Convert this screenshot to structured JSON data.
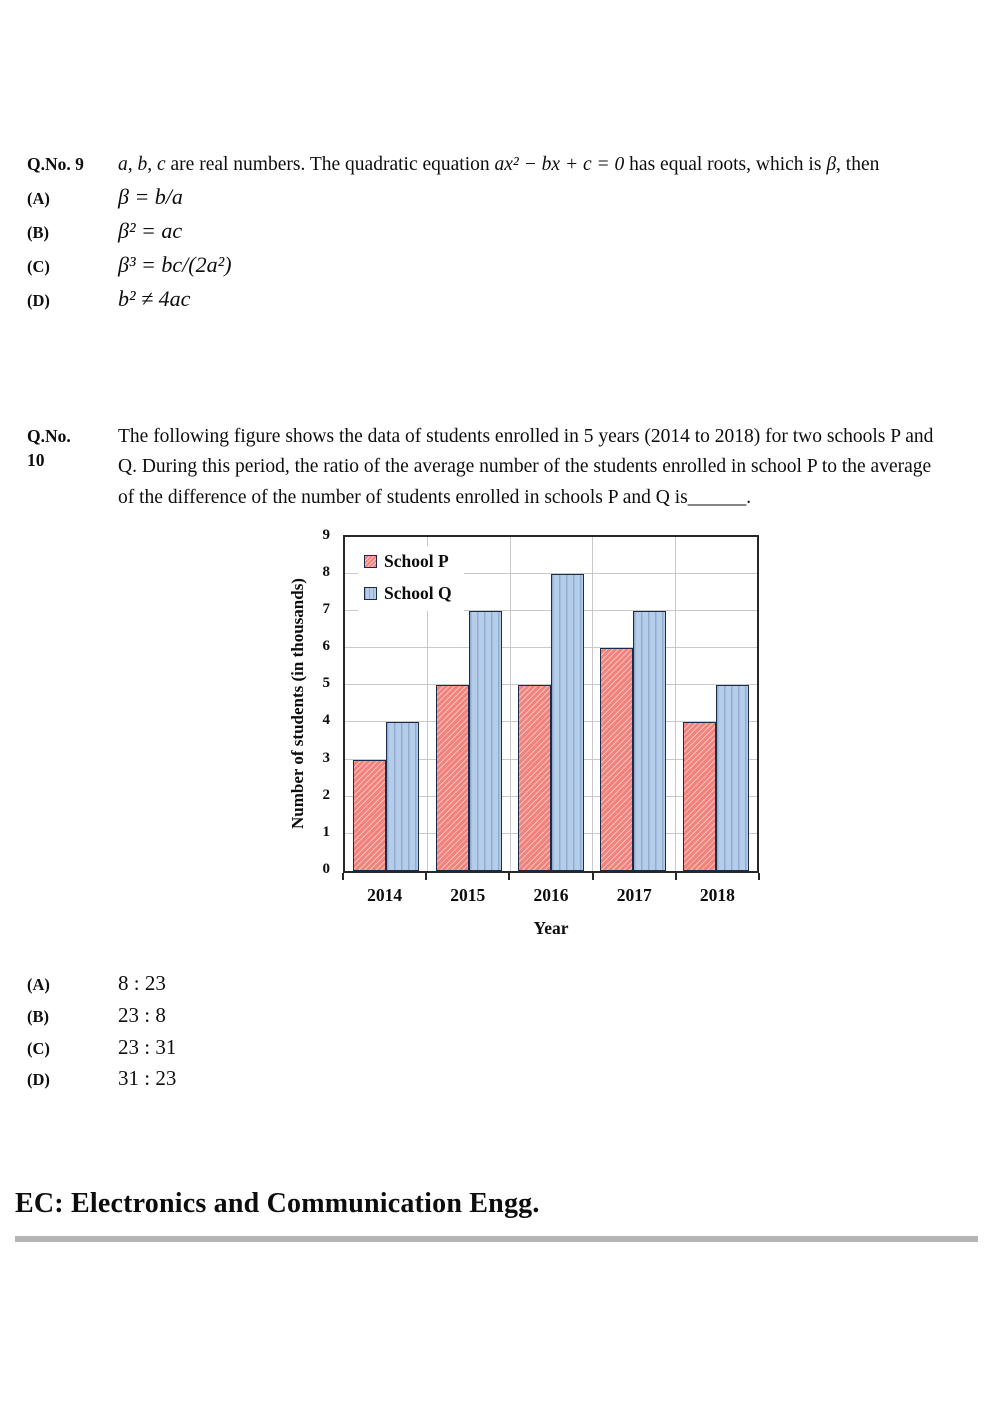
{
  "q9": {
    "label": "Q.No. 9",
    "text_parts": {
      "p1": "a, b, c",
      "p2": " are real numbers. The quadratic equation ",
      "p3": "ax² − bx + c = 0",
      "p4": " has equal roots, which is ",
      "p5": "β",
      "p6": ", then"
    },
    "options": [
      {
        "letter": "(A)",
        "text": "β = b/a"
      },
      {
        "letter": "(B)",
        "text": "β² = ac"
      },
      {
        "letter": "(C)",
        "text": "β³ =  bc/(2a²)"
      },
      {
        "letter": "(D)",
        "text": "b² ≠ 4ac"
      }
    ]
  },
  "q10": {
    "label_line1": "Q.No.",
    "label_line2": "10",
    "text": "The following figure shows the data of students enrolled in 5 years (2014 to 2018) for two schools P and Q. During this period, the ratio of the average number of the students enrolled in school P to the average of the difference of the number of students enrolled in schools P and Q is______.",
    "options": [
      {
        "letter": "(A)",
        "text": "8 : 23"
      },
      {
        "letter": "(B)",
        "text": "23 : 8"
      },
      {
        "letter": "(C)",
        "text": "23 : 31"
      },
      {
        "letter": "(D)",
        "text": "31 : 23"
      }
    ]
  },
  "chart_data": {
    "type": "bar",
    "categories": [
      "2014",
      "2015",
      "2016",
      "2017",
      "2018"
    ],
    "series": [
      {
        "name": "School P",
        "values": [
          3,
          5,
          5,
          6,
          4
        ],
        "fill": "#F1827C",
        "hatch": "diagonal-crosshatch"
      },
      {
        "name": "School Q",
        "values": [
          4,
          7,
          8,
          7,
          5
        ],
        "fill": "#B6CDEA",
        "hatch": "vertical-stripes"
      }
    ],
    "title": "",
    "xlabel": "Year",
    "ylabel": "Number of students (in thousands)",
    "ylim": [
      0,
      9
    ],
    "ytick_step": 1,
    "grid": true,
    "grid_color": "#C9C9C9",
    "bar_border_color": "#1C2B4A",
    "legend_position": "top-left"
  },
  "footer": {
    "section_title": "EC: Electronics and Communication Engg.",
    "divider_color": "#B5B5B5"
  }
}
